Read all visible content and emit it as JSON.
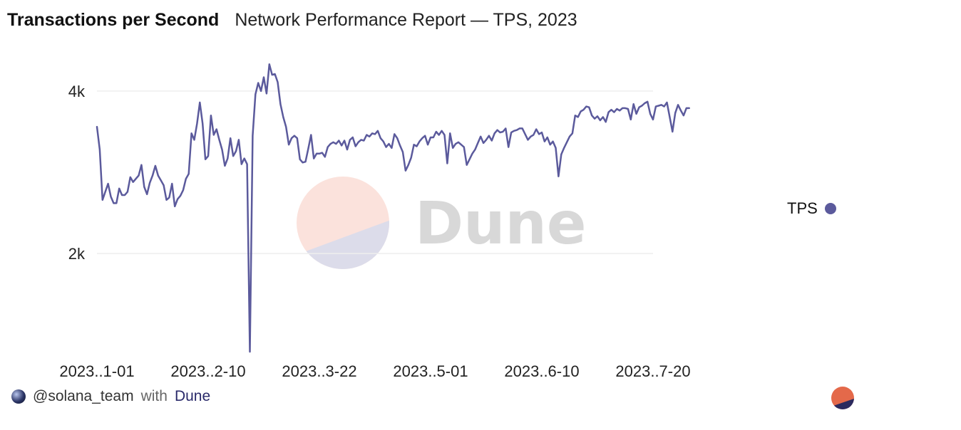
{
  "header": {
    "title": "Transactions per Second",
    "subtitle": "Network Performance Report — TPS, 2023"
  },
  "colors": {
    "series": "#5b5a9c",
    "gridline": "#eeeeee",
    "watermark_top": "#fbe2dc",
    "watermark_bottom": "#dcdcea",
    "badge_top": "#e4694a",
    "badge_bottom": "#2b2a5e"
  },
  "watermark": {
    "text": "Dune"
  },
  "legend": {
    "label": "TPS"
  },
  "footer": {
    "handle": "@solana_team",
    "with": "with",
    "brand": "Dune"
  },
  "icons": {
    "avatar": "avatar-icon",
    "badge": "dune-logo-icon"
  },
  "chart_data": {
    "type": "line",
    "ylim": [
      800,
      4350
    ],
    "yticks": [
      {
        "value": 2000,
        "label": "2k"
      },
      {
        "value": 4000,
        "label": "4k"
      }
    ],
    "xticks": [
      {
        "value": "2023-01-01",
        "label": "2023..1-01"
      },
      {
        "value": "2023-02-10",
        "label": "2023..2-10"
      },
      {
        "value": "2023-03-22",
        "label": "2023..3-22"
      },
      {
        "value": "2023-05-01",
        "label": "2023..5-01"
      },
      {
        "value": "2023-06-10",
        "label": "2023..6-10"
      },
      {
        "value": "2023-07-20",
        "label": "2023..7-20"
      }
    ],
    "grid": true,
    "legend_position": "right",
    "series": [
      {
        "name": "TPS",
        "start_date": "2023-01-01",
        "values": [
          3560,
          3280,
          2660,
          2760,
          2860,
          2700,
          2620,
          2620,
          2800,
          2720,
          2720,
          2760,
          2940,
          2880,
          2920,
          2960,
          3090,
          2820,
          2730,
          2870,
          2960,
          3080,
          2960,
          2900,
          2840,
          2660,
          2690,
          2860,
          2580,
          2670,
          2710,
          2780,
          2920,
          2980,
          3480,
          3400,
          3600,
          3860,
          3600,
          3160,
          3200,
          3700,
          3460,
          3530,
          3400,
          3280,
          3080,
          3170,
          3420,
          3200,
          3260,
          3400,
          3100,
          3170,
          3100,
          790,
          3450,
          3960,
          4100,
          4000,
          4170,
          3970,
          4330,
          4200,
          4210,
          4110,
          3840,
          3680,
          3560,
          3340,
          3420,
          3450,
          3420,
          3160,
          3120,
          3130,
          3290,
          3460,
          3170,
          3230,
          3230,
          3240,
          3190,
          3310,
          3350,
          3370,
          3350,
          3390,
          3330,
          3390,
          3280,
          3400,
          3430,
          3320,
          3370,
          3400,
          3390,
          3460,
          3440,
          3480,
          3470,
          3510,
          3420,
          3380,
          3310,
          3350,
          3300,
          3470,
          3420,
          3330,
          3250,
          3020,
          3090,
          3180,
          3340,
          3320,
          3380,
          3420,
          3450,
          3340,
          3430,
          3430,
          3500,
          3460,
          3510,
          3460,
          3110,
          3480,
          3300,
          3350,
          3370,
          3340,
          3310,
          3090,
          3160,
          3230,
          3280,
          3360,
          3440,
          3360,
          3400,
          3450,
          3390,
          3480,
          3520,
          3490,
          3500,
          3540,
          3310,
          3490,
          3510,
          3520,
          3540,
          3540,
          3470,
          3400,
          3440,
          3460,
          3530,
          3470,
          3490,
          3380,
          3430,
          3340,
          3380,
          3300,
          2950,
          3220,
          3300,
          3370,
          3440,
          3480,
          3700,
          3680,
          3750,
          3770,
          3810,
          3800,
          3700,
          3660,
          3690,
          3640,
          3680,
          3620,
          3740,
          3770,
          3740,
          3780,
          3760,
          3790,
          3790,
          3780,
          3650,
          3840,
          3720,
          3800,
          3820,
          3850,
          3870,
          3720,
          3650,
          3810,
          3820,
          3830,
          3810,
          3860,
          3680,
          3500,
          3730,
          3830,
          3760,
          3700,
          3790,
          3790
        ]
      }
    ]
  }
}
